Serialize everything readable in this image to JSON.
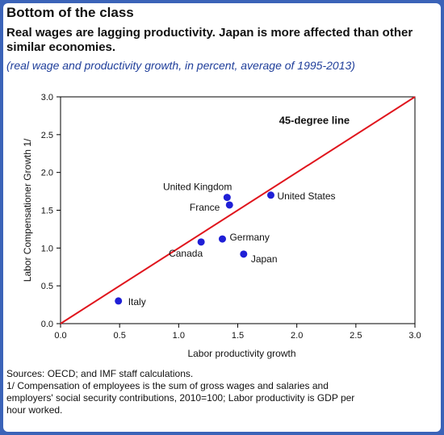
{
  "title": "Bottom of the class",
  "subtitle": "Real wages are lagging productivity.  Japan is more affected than other similar economies.",
  "note": "(real wage and productivity growth, in percent, average of 1995-2013)",
  "chart_data": {
    "type": "scatter",
    "xlabel": "Labor productivity growth",
    "ylabel": "Labor Compensationer Growth 1/",
    "xlim": [
      0,
      3
    ],
    "ylim": [
      0,
      3
    ],
    "xticks": [
      "0.0",
      "0.5",
      "1.0",
      "1.5",
      "2.0",
      "2.5",
      "3.0"
    ],
    "yticks": [
      "0.0",
      "0.5",
      "1.0",
      "1.5",
      "2.0",
      "2.5",
      "3.0"
    ],
    "reference_line": {
      "label": "45-degree line",
      "from": [
        0,
        0
      ],
      "to": [
        3,
        3
      ],
      "color": "#e0151d"
    },
    "point_color": "#1f1fd6",
    "points": [
      {
        "label": "Italy",
        "x": 0.49,
        "y": 0.3
      },
      {
        "label": "Canada",
        "x": 1.19,
        "y": 1.08
      },
      {
        "label": "Germany",
        "x": 1.37,
        "y": 1.12
      },
      {
        "label": "Japan",
        "x": 1.55,
        "y": 0.92
      },
      {
        "label": "United Kingdom",
        "x": 1.41,
        "y": 1.67
      },
      {
        "label": "France",
        "x": 1.43,
        "y": 1.57
      },
      {
        "label": "United States",
        "x": 1.78,
        "y": 1.7
      }
    ]
  },
  "footer": {
    "sources": "Sources: OECD; and IMF staff calculations.",
    "footnote": "1/ Compensation of employees is the sum of gross wages and salaries and\nemployers' social security contributions, 2010=100; Labor productivity is GDP per\nhour worked."
  }
}
